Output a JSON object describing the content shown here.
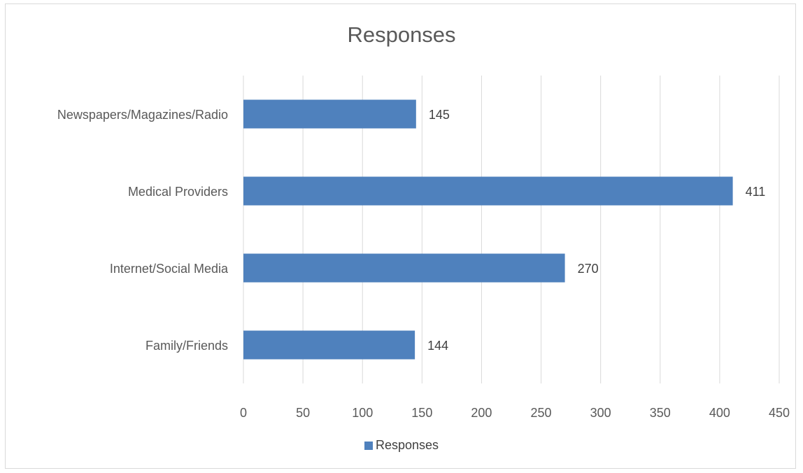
{
  "chart_data": {
    "type": "bar",
    "orientation": "horizontal",
    "title": "Responses",
    "categories": [
      "Family/Friends",
      "Internet/Social Media",
      "Medical Providers",
      "Newspapers/Magazines/Radio"
    ],
    "series": [
      {
        "name": "Responses",
        "values": [
          144,
          270,
          411,
          145
        ],
        "color": "#4f81bd"
      }
    ],
    "xlim": [
      0,
      450
    ],
    "xticks": [
      "0",
      "50",
      "100",
      "150",
      "200",
      "250",
      "300",
      "350",
      "400",
      "450"
    ],
    "grid": true,
    "data_labels": true,
    "legend": "bottom"
  }
}
